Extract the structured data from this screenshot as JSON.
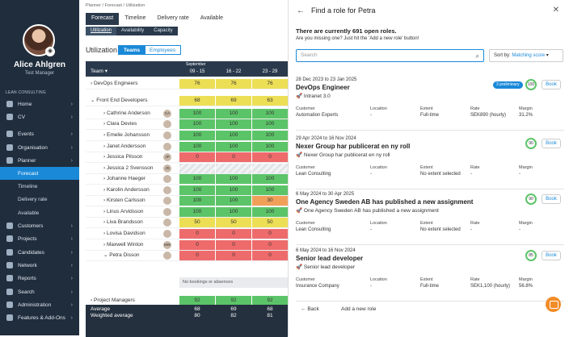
{
  "sidebar": {
    "user_name": "Alice Ahlgren",
    "user_role": "Test Manager",
    "org": "LEAN CONSULTING",
    "items": [
      {
        "label": "Home",
        "icon": "home-icon"
      },
      {
        "label": "CV",
        "icon": "cv-icon"
      },
      {
        "label": "Events",
        "icon": "calendar-icon"
      },
      {
        "label": "Organisation",
        "icon": "building-icon"
      },
      {
        "label": "Planner",
        "icon": "planner-icon"
      },
      {
        "label": "Customers",
        "icon": "customers-icon"
      },
      {
        "label": "Projects",
        "icon": "projects-icon"
      },
      {
        "label": "Candidates",
        "icon": "candidates-icon"
      },
      {
        "label": "Network",
        "icon": "network-icon"
      },
      {
        "label": "Reports",
        "icon": "reports-icon"
      },
      {
        "label": "Search",
        "icon": "search-icon"
      },
      {
        "label": "Administration",
        "icon": "admin-icon"
      },
      {
        "label": "Features & Add-Ons",
        "icon": "features-icon"
      }
    ],
    "planner_sub": [
      "Forecast",
      "Timeline",
      "Delivery rate",
      "Available"
    ]
  },
  "main": {
    "breadcrumb": "Planner  /  Forecast  /  Utilization",
    "tabs": [
      "Forecast",
      "Timeline",
      "Delivery rate",
      "Available"
    ],
    "subtabs": [
      "Utilization",
      "Availability",
      "Capacity"
    ],
    "util_label": "Utilization",
    "toggle": [
      "Teams",
      "Employees"
    ],
    "team_header": "Team",
    "month": "September",
    "weeks": [
      "09 - 15",
      "16 - 22",
      "23 - 29"
    ],
    "rows": [
      {
        "name": "DevOps Engineers",
        "vals": [
          "76",
          "76",
          "76"
        ],
        "cls": [
          "y",
          "y",
          "y"
        ]
      },
      {
        "name": "Front End Developers",
        "vals": [
          "68",
          "69",
          "63"
        ],
        "cls": [
          "y",
          "y",
          "y"
        ]
      },
      {
        "name": "Cathrine Anderson",
        "vals": [
          "100",
          "100",
          "100"
        ],
        "cls": [
          "g",
          "g",
          "g"
        ],
        "av": "CA"
      },
      {
        "name": "Clara Devies",
        "vals": [
          "100",
          "100",
          "100"
        ],
        "cls": [
          "g",
          "g",
          "g"
        ],
        "av": ""
      },
      {
        "name": "Emelie Johansson",
        "vals": [
          "100",
          "100",
          "100"
        ],
        "cls": [
          "g",
          "g",
          "g"
        ],
        "av": ""
      },
      {
        "name": "Janet Andersson",
        "vals": [
          "100",
          "100",
          "100"
        ],
        "cls": [
          "g",
          "g",
          "g"
        ],
        "av": ""
      },
      {
        "name": "Jessica Pilsson",
        "vals": [
          "0",
          "0",
          "0"
        ],
        "cls": [
          "r",
          "r",
          "r"
        ],
        "av": "JP"
      },
      {
        "name": "Jessica 2 Svensson",
        "vals": [
          "",
          "",
          ""
        ],
        "cls": [
          "hatch",
          "hatch",
          "hatch"
        ],
        "av": "JS"
      },
      {
        "name": "Johanne Haeger",
        "vals": [
          "100",
          "100",
          "100"
        ],
        "cls": [
          "g",
          "g",
          "g"
        ],
        "av": ""
      },
      {
        "name": "Karolin Andersson",
        "vals": [
          "100",
          "100",
          "100"
        ],
        "cls": [
          "g",
          "g",
          "g"
        ],
        "av": ""
      },
      {
        "name": "Kirsten Carlsson",
        "vals": [
          "100",
          "100",
          "30"
        ],
        "cls": [
          "g",
          "g",
          "o"
        ],
        "av": ""
      },
      {
        "name": "Linus Arvidsson",
        "vals": [
          "100",
          "100",
          "100"
        ],
        "cls": [
          "g",
          "g",
          "g"
        ],
        "av": ""
      },
      {
        "name": "Liva Brandsson",
        "vals": [
          "50",
          "50",
          "50"
        ],
        "cls": [
          "y",
          "y",
          "y"
        ],
        "av": ""
      },
      {
        "name": "Lovisa Davidson",
        "vals": [
          "0",
          "0",
          "0"
        ],
        "cls": [
          "r",
          "r",
          "r"
        ],
        "av": ""
      },
      {
        "name": "Maxwell Winton",
        "vals": [
          "0",
          "0",
          "0"
        ],
        "cls": [
          "r",
          "r",
          "r"
        ],
        "av": "MW"
      },
      {
        "name": "Petra Disson",
        "vals": [
          "0",
          "0",
          "0"
        ],
        "cls": [
          "r",
          "r",
          "r"
        ],
        "av": ""
      }
    ],
    "no_bookings": "No bookings or absences",
    "project_managers": {
      "name": "Project Managers",
      "vals": [
        "92",
        "92",
        "92"
      ]
    },
    "average": {
      "label": "Average",
      "vals": [
        "68",
        "69",
        "68"
      ]
    },
    "weighted": {
      "label": "Weighted average",
      "vals": [
        "80",
        "82",
        "81"
      ]
    }
  },
  "modal": {
    "title": "Find a role for Petra",
    "count": "There are currently 691 open roles.",
    "missing": "Are you missing one? Just hit the 'Add a new role' button!",
    "search_placeholder": "Search",
    "sort_label": "Sort by:",
    "sort_value": "Matching score",
    "col_labels": [
      "Customer",
      "Location",
      "Extent",
      "Rate",
      "Margin"
    ],
    "book_label": "Book",
    "cards": [
      {
        "dates": "28 Dec 2023 to 23 Jan 2025",
        "role": "DevOps Engineer",
        "sub": "Intranet 3.0",
        "customer": "Automation Experts",
        "location": "-",
        "extent": "Full-time",
        "rate": "SEK890 (hourly)",
        "margin": "31.2%",
        "score": "100",
        "pill": "3 preliminary"
      },
      {
        "dates": "29 Apr 2024 to 16 Nov 2024",
        "role": "Nexer Group har publicerat en ny roll",
        "sub": "Nexer Group har publicerat en ny roll",
        "customer": "Lean Consulting",
        "location": "-",
        "extent": "No extent selected",
        "rate": "-",
        "margin": "-",
        "score": "90",
        "pill": ""
      },
      {
        "dates": "6 May 2024 to 30 Apr 2025",
        "role": "One Agency Sweden AB has published a new assignment",
        "sub": "One Agency Sweden AB has published a new assignment",
        "customer": "Lean Consulting",
        "location": "-",
        "extent": "No extent selected",
        "rate": "-",
        "margin": "-",
        "score": "90",
        "pill": ""
      },
      {
        "dates": "6 May 2024 to 16 Nov 2024",
        "role": "Senior lead developer",
        "sub": "Senior lead developer",
        "customer": "Insurance Company",
        "location": "-",
        "extent": "Full-time",
        "rate": "SEK1,100 (hourly)",
        "margin": "56.8%",
        "score": "85",
        "pill": ""
      }
    ],
    "back_label": "Back",
    "add_label": "Add a new role"
  }
}
